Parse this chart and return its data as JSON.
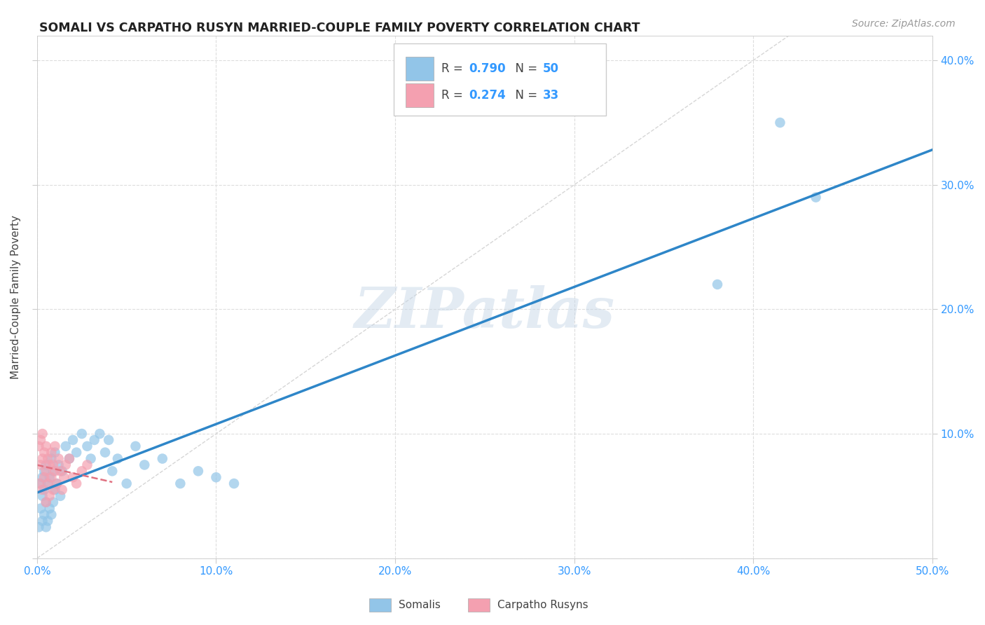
{
  "title": "SOMALI VS CARPATHO RUSYN MARRIED-COUPLE FAMILY POVERTY CORRELATION CHART",
  "source": "Source: ZipAtlas.com",
  "ylabel": "Married-Couple Family Poverty",
  "xlim": [
    0.0,
    0.5
  ],
  "ylim": [
    0.0,
    0.42
  ],
  "xticks": [
    0.0,
    0.1,
    0.2,
    0.3,
    0.4,
    0.5
  ],
  "yticks": [
    0.0,
    0.1,
    0.2,
    0.3,
    0.4
  ],
  "xticklabels": [
    "0.0%",
    "10.0%",
    "20.0%",
    "30.0%",
    "40.0%",
    "50.0%"
  ],
  "yticklabels": [
    "",
    "10.0%",
    "20.0%",
    "30.0%",
    "40.0%"
  ],
  "somali_R": 0.79,
  "somali_N": 50,
  "carpatho_R": 0.274,
  "carpatho_N": 33,
  "somali_color": "#92C5E8",
  "carpatho_color": "#F4A0B0",
  "somali_line_color": "#2E86C8",
  "carpatho_line_color": "#E07080",
  "diagonal_color": "#CCCCCC",
  "watermark_color": "#C8D8E8",
  "background_color": "#FFFFFF",
  "grid_color": "#DDDDDD",
  "somali_x": [
    0.001,
    0.002,
    0.002,
    0.003,
    0.003,
    0.003,
    0.004,
    0.004,
    0.004,
    0.005,
    0.005,
    0.005,
    0.006,
    0.006,
    0.007,
    0.007,
    0.008,
    0.008,
    0.009,
    0.009,
    0.01,
    0.01,
    0.011,
    0.012,
    0.013,
    0.014,
    0.016,
    0.018,
    0.02,
    0.022,
    0.025,
    0.028,
    0.03,
    0.032,
    0.035,
    0.038,
    0.04,
    0.042,
    0.045,
    0.05,
    0.055,
    0.06,
    0.07,
    0.08,
    0.09,
    0.1,
    0.11,
    0.38,
    0.415,
    0.435
  ],
  "somali_y": [
    0.025,
    0.04,
    0.06,
    0.03,
    0.05,
    0.065,
    0.035,
    0.055,
    0.07,
    0.025,
    0.045,
    0.075,
    0.03,
    0.06,
    0.04,
    0.065,
    0.035,
    0.08,
    0.045,
    0.07,
    0.055,
    0.085,
    0.06,
    0.075,
    0.05,
    0.07,
    0.09,
    0.08,
    0.095,
    0.085,
    0.1,
    0.09,
    0.08,
    0.095,
    0.1,
    0.085,
    0.095,
    0.07,
    0.08,
    0.06,
    0.09,
    0.075,
    0.08,
    0.06,
    0.07,
    0.065,
    0.06,
    0.22,
    0.35,
    0.29
  ],
  "carpatho_x": [
    0.001,
    0.001,
    0.002,
    0.002,
    0.003,
    0.003,
    0.003,
    0.004,
    0.004,
    0.005,
    0.005,
    0.005,
    0.006,
    0.006,
    0.007,
    0.007,
    0.008,
    0.008,
    0.009,
    0.009,
    0.01,
    0.01,
    0.011,
    0.012,
    0.013,
    0.014,
    0.015,
    0.016,
    0.018,
    0.02,
    0.022,
    0.025,
    0.028
  ],
  "carpatho_y": [
    0.06,
    0.09,
    0.075,
    0.095,
    0.055,
    0.08,
    0.1,
    0.065,
    0.085,
    0.07,
    0.045,
    0.09,
    0.06,
    0.08,
    0.05,
    0.075,
    0.065,
    0.085,
    0.055,
    0.075,
    0.07,
    0.09,
    0.06,
    0.08,
    0.07,
    0.055,
    0.065,
    0.075,
    0.08,
    0.065,
    0.06,
    0.07,
    0.075
  ]
}
